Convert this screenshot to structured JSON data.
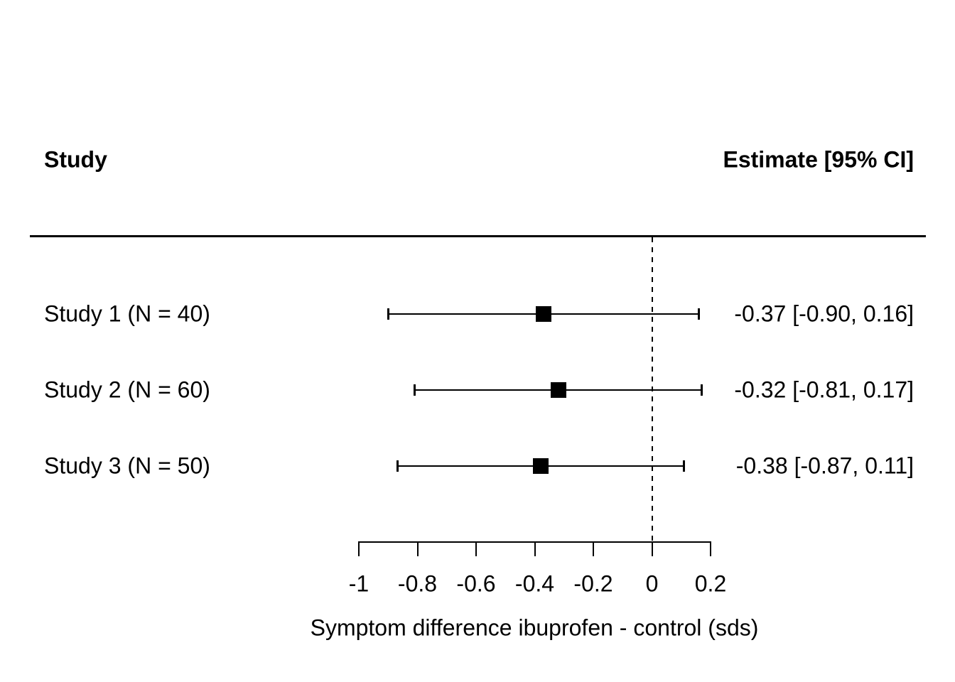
{
  "header": {
    "left": "Study",
    "right": "Estimate [95% CI]"
  },
  "chart_data": {
    "type": "forest",
    "title": "",
    "xlabel": "Symptom difference ibuprofen - control (sds)",
    "studies": [
      {
        "label": "Study 1 (N = 40)",
        "n": 40,
        "estimate": -0.37,
        "ci_low": -0.9,
        "ci_high": 0.16,
        "annotation": "-0.37 [-0.90, 0.16]"
      },
      {
        "label": "Study 2 (N = 60)",
        "n": 60,
        "estimate": -0.32,
        "ci_low": -0.81,
        "ci_high": 0.17,
        "annotation": "-0.32 [-0.81, 0.17]"
      },
      {
        "label": "Study 3 (N = 50)",
        "n": 50,
        "estimate": -0.38,
        "ci_low": -0.87,
        "ci_high": 0.11,
        "annotation": "-0.38 [-0.87, 0.11]"
      }
    ],
    "axis": {
      "range": [
        -1,
        0.2
      ],
      "ticks": [
        -1,
        -0.8,
        -0.6,
        -0.4,
        -0.2,
        0,
        0.2
      ],
      "tick_labels": [
        "-1",
        "-0.8",
        "-0.6",
        "-0.4",
        "-0.2",
        "0",
        "0.2"
      ],
      "reference_line": 0,
      "xlabel": "Symptom difference ibuprofen - control (sds)"
    },
    "legend": null,
    "grid": false,
    "colors": {
      "foreground": "#000000",
      "background": "#ffffff"
    }
  }
}
